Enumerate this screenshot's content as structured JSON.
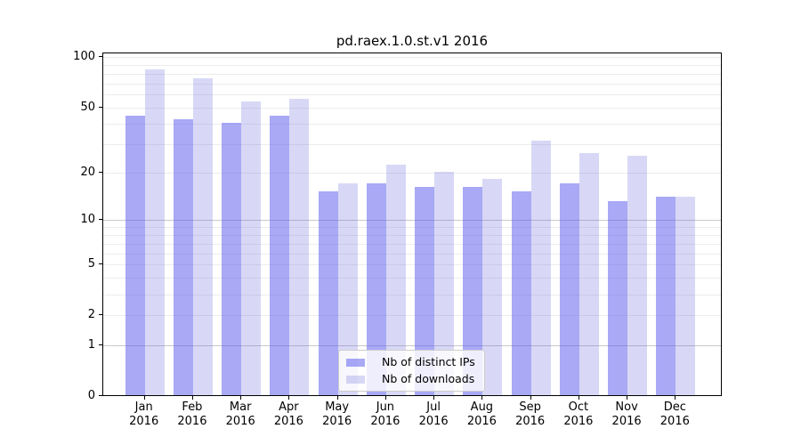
{
  "chart_data": {
    "type": "bar",
    "title": "pd.raex.1.0.st.v1 2016",
    "x_categories": [
      {
        "month": "Jan",
        "year": "2016"
      },
      {
        "month": "Feb",
        "year": "2016"
      },
      {
        "month": "Mar",
        "year": "2016"
      },
      {
        "month": "Apr",
        "year": "2016"
      },
      {
        "month": "May",
        "year": "2016"
      },
      {
        "month": "Jun",
        "year": "2016"
      },
      {
        "month": "Jul",
        "year": "2016"
      },
      {
        "month": "Aug",
        "year": "2016"
      },
      {
        "month": "Sep",
        "year": "2016"
      },
      {
        "month": "Oct",
        "year": "2016"
      },
      {
        "month": "Nov",
        "year": "2016"
      },
      {
        "month": "Dec",
        "year": "2016"
      }
    ],
    "series": [
      {
        "name": "Nb of distinct IPs",
        "color": "rgba(90,90,238,0.52)",
        "values": [
          44,
          42,
          40,
          44,
          15,
          17,
          16,
          16,
          15,
          17,
          13,
          14
        ]
      },
      {
        "name": "Nb of downloads",
        "color": "rgba(100,100,220,0.25)",
        "values": [
          84,
          74,
          54,
          56,
          17,
          22,
          20,
          18,
          31,
          26,
          25,
          14
        ]
      }
    ],
    "yscale": "log1p",
    "ylim": [
      0,
      100
    ],
    "yticks": [
      0,
      1,
      2,
      5,
      10,
      20,
      50,
      100
    ],
    "grid_major": [
      1,
      10
    ],
    "grid_minor": [
      2,
      3,
      4,
      5,
      6,
      7,
      8,
      9,
      20,
      30,
      40,
      50,
      60,
      70,
      80,
      90,
      100
    ],
    "colors": {
      "grid_major": "#c9c9c9",
      "grid_minor": "#ececec",
      "axis": "#000000",
      "text": "#000000"
    },
    "legend_position": "lower center inside"
  }
}
